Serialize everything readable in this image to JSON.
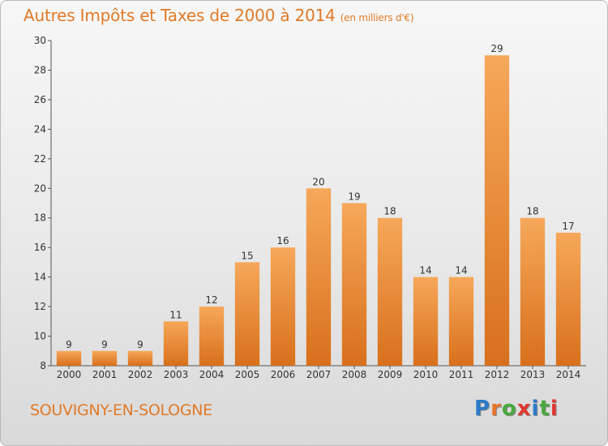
{
  "title": "Autres Impôts et Taxes de 2000 à 2014",
  "unit": "(en milliers d'€)",
  "commune": "SOUVIGNY-EN-SOLOGNE",
  "logo": {
    "text": "Proxiti",
    "letter_colors": [
      "#2b7bc8",
      "#e6762a",
      "#4aa83f",
      "#e0382f",
      "#2b7bc8",
      "#4aa83f",
      "#e0382f"
    ]
  },
  "chart_data": {
    "type": "bar",
    "categories": [
      "2000",
      "2001",
      "2002",
      "2003",
      "2004",
      "2005",
      "2006",
      "2007",
      "2008",
      "2009",
      "2010",
      "2011",
      "2012",
      "2013",
      "2014"
    ],
    "values": [
      9,
      9,
      9,
      11,
      12,
      15,
      16,
      20,
      19,
      18,
      14,
      14,
      29,
      18,
      17
    ],
    "ylim": [
      8,
      30
    ],
    "yticks": [
      8,
      10,
      12,
      14,
      16,
      18,
      20,
      22,
      24,
      26,
      28,
      30
    ],
    "grid": false,
    "bar_color_top": "#f6a85a",
    "bar_color_bottom": "#d8701c",
    "data_labels": true
  }
}
